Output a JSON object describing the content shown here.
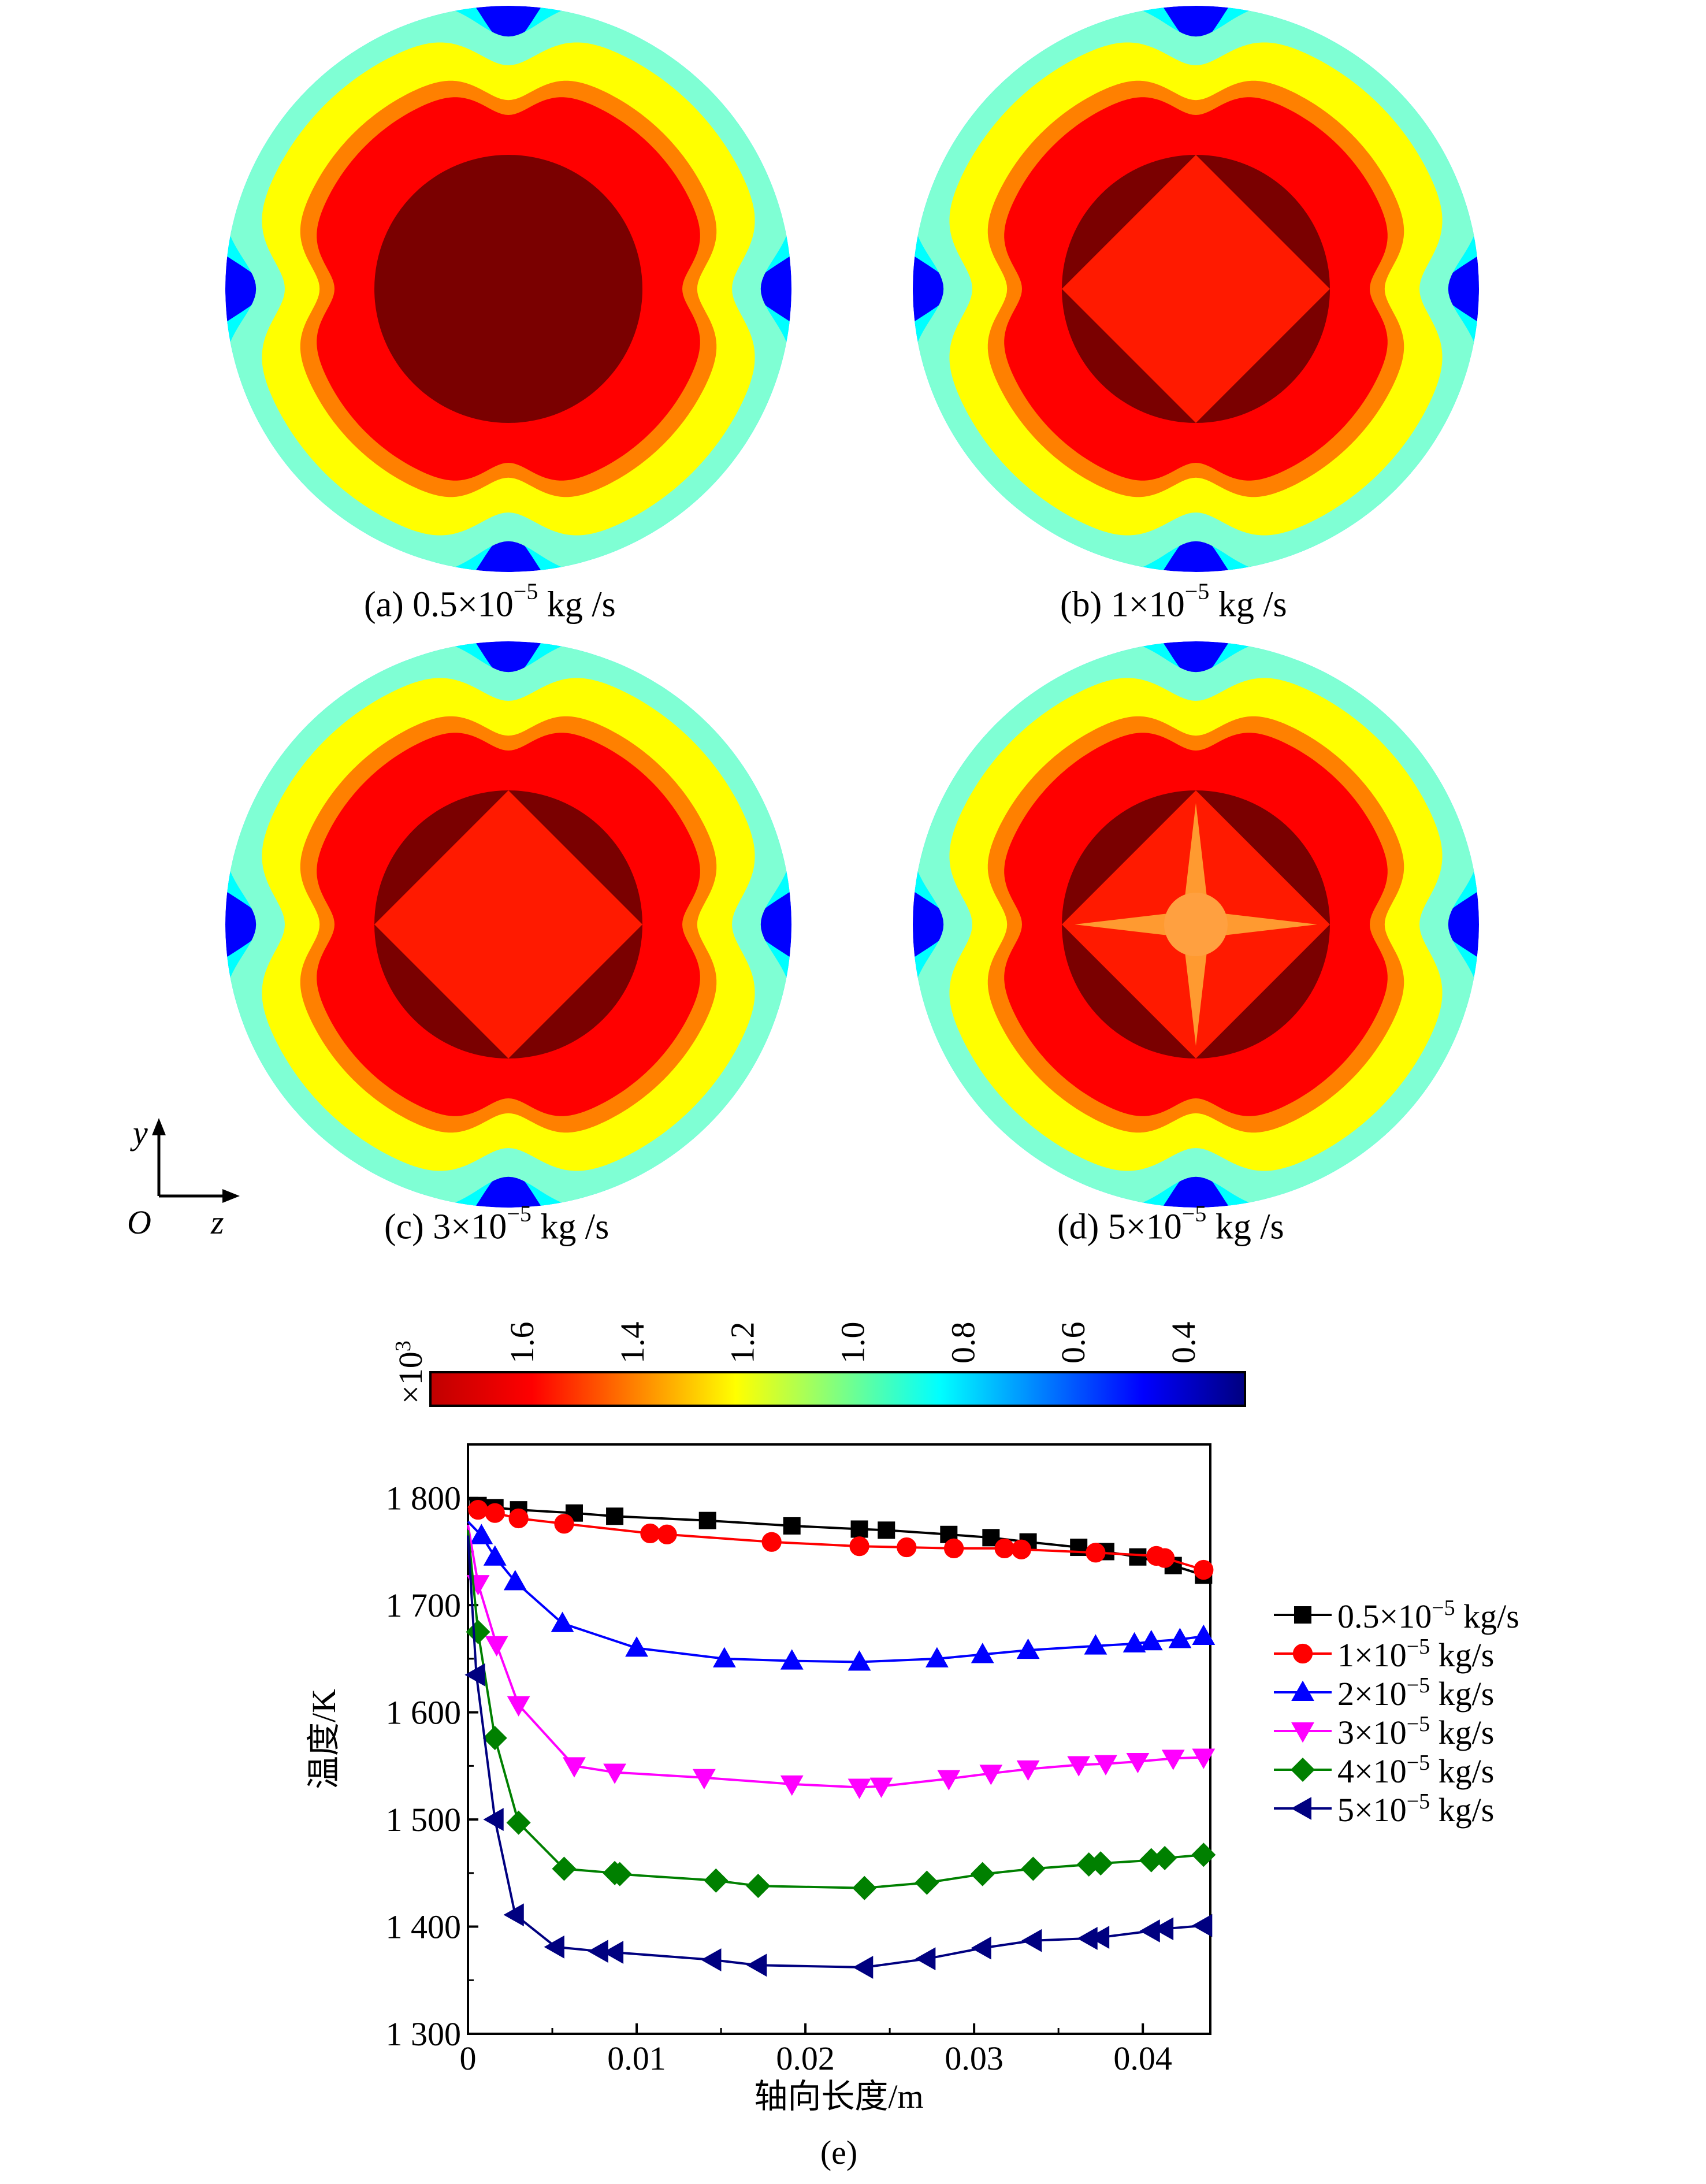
{
  "captions": {
    "a": {
      "prefix": "(a) 0.5×10",
      "exp": "−5",
      "suffix": " kg /s"
    },
    "b": {
      "prefix": "(b) 1×10",
      "exp": "−5",
      "suffix": " kg /s"
    },
    "c": {
      "prefix": "(c) 3×10",
      "exp": "−5",
      "suffix": " kg /s"
    },
    "d": {
      "prefix": "(d) 5×10",
      "exp": "−5",
      "suffix": " kg /s"
    },
    "e": "(e)"
  },
  "axis_indicator": {
    "y": "y",
    "origin": "O",
    "z": "z"
  },
  "colorbar": {
    "multiplier": "×10",
    "multiplier_exp": "3",
    "ticks": [
      "1.6",
      "1.4",
      "1.2",
      "1.0",
      "0.8",
      "0.6",
      "0.4"
    ],
    "colors": [
      "#c00000",
      "#ff0000",
      "#ff8000",
      "#ffff00",
      "#80ff80",
      "#00ffff",
      "#0080ff",
      "#0000ff",
      "#000080"
    ]
  },
  "chart_data": {
    "type": "line",
    "xlabel": "轴向长度/m",
    "ylabel": "温度/K",
    "xlim": [
      0,
      0.044
    ],
    "ylim": [
      1300,
      1850
    ],
    "xticks": [
      0,
      0.01,
      0.02,
      0.03,
      0.04
    ],
    "xtick_labels": [
      "0",
      "0.01",
      "0.02",
      "0.03",
      "0.04"
    ],
    "yticks": [
      1300,
      1400,
      1500,
      1600,
      1700,
      1800
    ],
    "ytick_labels": [
      "1 300",
      "1 400",
      "1 500",
      "1 600",
      "1 700",
      "1 800"
    ],
    "legend_position": "right",
    "series": [
      {
        "name": "0.5×10−5 kg/s",
        "legend_base": "0.5×10",
        "legend_exp": "−5",
        "legend_unit": " kg/s",
        "color": "#000000",
        "marker": "square",
        "x": [
          0,
          0.0006,
          0.0016,
          0.003,
          0.0063,
          0.0087,
          0.0142,
          0.0192,
          0.0232,
          0.0248,
          0.0285,
          0.031,
          0.0332,
          0.0362,
          0.0378,
          0.0397,
          0.0418,
          0.0436
        ],
        "y": [
          1800,
          1793,
          1791,
          1789,
          1786,
          1783,
          1779,
          1774,
          1771,
          1770,
          1766,
          1763,
          1759,
          1754,
          1750,
          1745,
          1737,
          1728
        ]
      },
      {
        "name": "1×10−5 kg/s",
        "legend_base": "1×10",
        "legend_exp": "−5",
        "legend_unit": " kg/s",
        "color": "#ff0000",
        "marker": "circle",
        "x": [
          0,
          0.0006,
          0.0016,
          0.003,
          0.0057,
          0.0108,
          0.0118,
          0.018,
          0.0232,
          0.026,
          0.0288,
          0.0318,
          0.0328,
          0.0372,
          0.0408,
          0.0413,
          0.0436
        ],
        "y": [
          1792,
          1789,
          1786,
          1781,
          1776,
          1767,
          1766,
          1759,
          1755,
          1754,
          1753,
          1753,
          1752,
          1749,
          1746,
          1744,
          1733
        ]
      },
      {
        "name": "2×10−5 kg/s",
        "legend_base": "2×10",
        "legend_exp": "−5",
        "legend_unit": " kg/s",
        "color": "#0000ff",
        "marker": "triangle-up",
        "x": [
          0,
          0.0008,
          0.0016,
          0.0028,
          0.0056,
          0.01,
          0.0152,
          0.0192,
          0.0232,
          0.0278,
          0.0305,
          0.0332,
          0.0372,
          0.0395,
          0.0405,
          0.0422,
          0.0436
        ],
        "y": [
          1778,
          1765,
          1745,
          1722,
          1683,
          1660,
          1650,
          1648,
          1647,
          1650,
          1654,
          1658,
          1662,
          1664,
          1666,
          1668,
          1671
        ]
      },
      {
        "name": "3×10−5 kg/s",
        "legend_base": "3×10",
        "legend_exp": "−5",
        "legend_unit": " kg/s",
        "color": "#ff00ff",
        "marker": "triangle-down",
        "x": [
          0,
          0.0006,
          0.0017,
          0.003,
          0.0063,
          0.0087,
          0.014,
          0.0192,
          0.0232,
          0.0245,
          0.0285,
          0.031,
          0.0332,
          0.0362,
          0.0378,
          0.0397,
          0.0418,
          0.0436
        ],
        "y": [
          1775,
          1720,
          1663,
          1607,
          1550,
          1544,
          1539,
          1533,
          1530,
          1531,
          1538,
          1543,
          1547,
          1551,
          1552,
          1554,
          1557,
          1558
        ]
      },
      {
        "name": "4×10−5 kg/s",
        "legend_base": "4×10",
        "legend_exp": "−5",
        "legend_unit": " kg/s",
        "color": "#008000",
        "marker": "diamond",
        "x": [
          0,
          0.0006,
          0.0016,
          0.003,
          0.0057,
          0.0087,
          0.009,
          0.0147,
          0.0172,
          0.0235,
          0.0272,
          0.0305,
          0.0335,
          0.0368,
          0.0375,
          0.0405,
          0.0413,
          0.0436
        ],
        "y": [
          1770,
          1675,
          1576,
          1497,
          1454,
          1450,
          1449,
          1443,
          1438,
          1436,
          1441,
          1449,
          1454,
          1458,
          1459,
          1462,
          1464,
          1467
        ]
      },
      {
        "name": "5×10−5 kg/s",
        "legend_base": "5×10",
        "legend_exp": "−5",
        "legend_unit": " kg/s",
        "color": "#000080",
        "marker": "triangle-left",
        "x": [
          0,
          0.0005,
          0.0016,
          0.0028,
          0.0052,
          0.0078,
          0.0087,
          0.0145,
          0.0172,
          0.0235,
          0.0272,
          0.0305,
          0.0335,
          0.0368,
          0.0375,
          0.0405,
          0.0413,
          0.0436
        ],
        "y": [
          1765,
          1635,
          1500,
          1411,
          1381,
          1377,
          1376,
          1369,
          1364,
          1362,
          1370,
          1380,
          1387,
          1389,
          1390,
          1396,
          1398,
          1401
        ]
      }
    ]
  }
}
